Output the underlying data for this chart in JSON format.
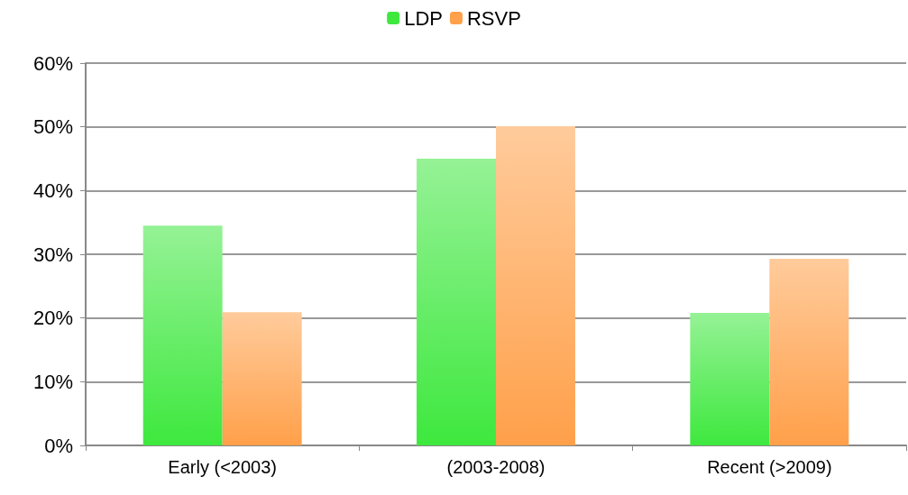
{
  "chart_data": {
    "type": "bar",
    "categories": [
      "Early (<2003)",
      "(2003-2008)",
      "Recent (>2009)"
    ],
    "series": [
      {
        "name": "LDP",
        "color": "#3ee83e",
        "values": [
          34.5,
          45.0,
          20.8
        ]
      },
      {
        "name": "RSVP",
        "color": "#ffa04a",
        "values": [
          20.9,
          50.1,
          29.3
        ]
      }
    ],
    "ylim": [
      0,
      60
    ],
    "yticks": [
      {
        "value": 0,
        "label": "0%"
      },
      {
        "value": 10,
        "label": "10%"
      },
      {
        "value": 20,
        "label": "20%"
      },
      {
        "value": 30,
        "label": "30%"
      },
      {
        "value": 40,
        "label": "40%"
      },
      {
        "value": 50,
        "label": "50%"
      },
      {
        "value": 60,
        "label": "60%"
      }
    ],
    "grid": "y",
    "legend": "top"
  }
}
